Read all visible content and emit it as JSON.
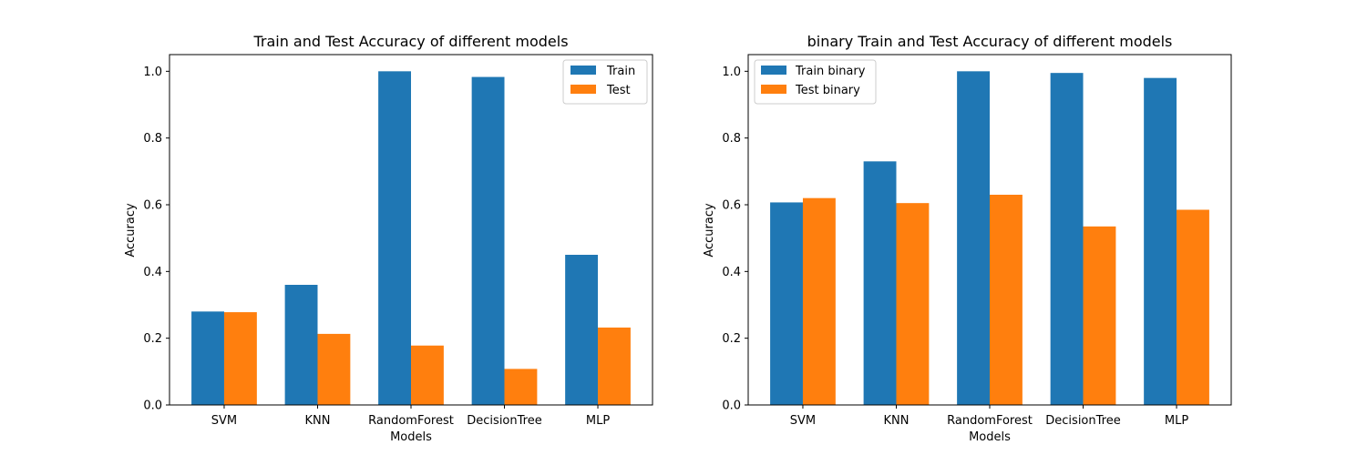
{
  "chart_data": [
    {
      "type": "bar",
      "title": "Train and Test Accuracy of different models",
      "xlabel": "Models",
      "ylabel": "Accuracy",
      "ylim": [
        0,
        1.05
      ],
      "yticks": [
        "0.0",
        "0.2",
        "0.4",
        "0.6",
        "0.8",
        "1.0"
      ],
      "categories": [
        "SVM",
        "KNN",
        "RandomForest",
        "DecisionTree",
        "MLP"
      ],
      "series": [
        {
          "name": "Train",
          "color": "#1f77b4",
          "values": [
            0.28,
            0.36,
            1.0,
            0.983,
            0.45
          ]
        },
        {
          "name": "Test",
          "color": "#ff7f0e",
          "values": [
            0.278,
            0.213,
            0.178,
            0.108,
            0.232
          ]
        }
      ],
      "legend": "top-right",
      "grid": false
    },
    {
      "type": "bar",
      "title": "binary Train and Test Accuracy of different models",
      "xlabel": "Models",
      "ylabel": "Accuracy",
      "ylim": [
        0,
        1.05
      ],
      "yticks": [
        "0.0",
        "0.2",
        "0.4",
        "0.6",
        "0.8",
        "1.0"
      ],
      "categories": [
        "SVM",
        "KNN",
        "RandomForest",
        "DecisionTree",
        "MLP"
      ],
      "series": [
        {
          "name": "Train binary",
          "color": "#1f77b4",
          "values": [
            0.607,
            0.73,
            1.0,
            0.995,
            0.98
          ]
        },
        {
          "name": "Test binary",
          "color": "#ff7f0e",
          "values": [
            0.62,
            0.605,
            0.63,
            0.535,
            0.585
          ]
        }
      ],
      "legend": "top-left",
      "grid": false
    }
  ]
}
